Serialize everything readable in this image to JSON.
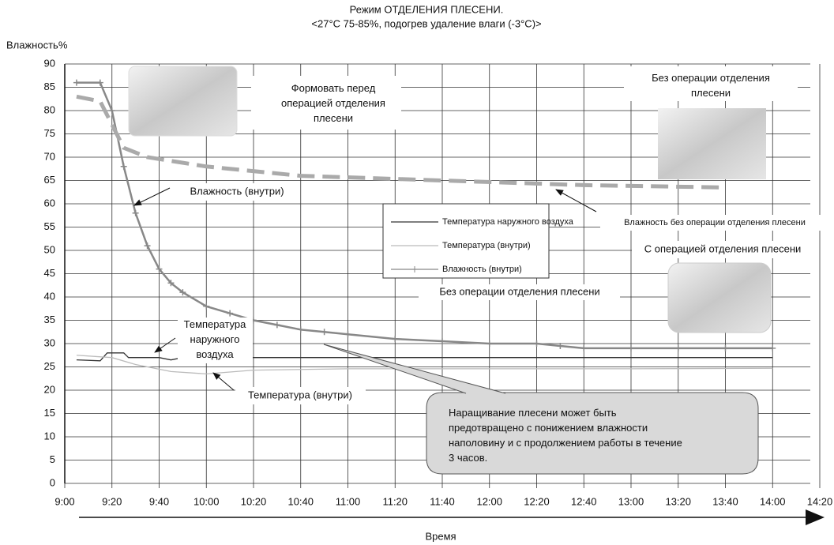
{
  "chart_data": {
    "type": "line",
    "title": "Режим ОТДЕЛЕНИЯ ПЛЕСЕНИ.",
    "subtitle": "<27°C 75-85%, подогрев удаление влаги (-3°C)>",
    "y_label": "Влажность%",
    "x_label": "Время",
    "xlim": [
      "9:00",
      "14:20"
    ],
    "xticks": [
      "9:00",
      "9:20",
      "9:40",
      "10:00",
      "10:20",
      "10:40",
      "11:00",
      "11:20",
      "11:40",
      "12:00",
      "12:20",
      "12:40",
      "13:00",
      "13:20",
      "13:40",
      "14:00",
      "14:20"
    ],
    "ylim": [
      0,
      90
    ],
    "yticks": [
      0,
      5,
      10,
      15,
      20,
      25,
      30,
      35,
      40,
      45,
      50,
      55,
      60,
      65,
      70,
      75,
      80,
      85,
      90
    ],
    "grid": true,
    "series": [
      {
        "name": "Температура наружного воздуха",
        "color": "#333333",
        "style": "solid",
        "x": [
          "9:05",
          "9:15",
          "9:18",
          "9:25",
          "9:27",
          "9:40",
          "9:45",
          "9:50",
          "10:00",
          "11:00",
          "12:00",
          "13:00",
          "14:00"
        ],
        "values": [
          26.5,
          26.3,
          28,
          28,
          27,
          27,
          26.5,
          27,
          27,
          27,
          27,
          27,
          27
        ]
      },
      {
        "name": "Температура (внутри)",
        "color": "#bbbbbb",
        "style": "solid",
        "x": [
          "9:05",
          "9:20",
          "9:30",
          "9:45",
          "10:00",
          "10:20",
          "11:00",
          "12:00",
          "13:00",
          "14:00"
        ],
        "values": [
          27.5,
          27,
          25.5,
          24,
          23.5,
          24.3,
          24.6,
          24.6,
          24.6,
          24.7
        ]
      },
      {
        "name": "Влажность (внутри)",
        "color": "#888888",
        "style": "plus",
        "x": [
          "9:05",
          "9:15",
          "9:20",
          "9:25",
          "9:30",
          "9:35",
          "9:40",
          "9:45",
          "9:50",
          "10:00",
          "10:10",
          "10:20",
          "10:30",
          "10:40",
          "10:50",
          "11:00",
          "11:20",
          "11:40",
          "12:00",
          "12:20",
          "12:30",
          "12:40",
          "13:00",
          "13:20",
          "13:40",
          "14:00"
        ],
        "values": [
          86,
          86,
          80,
          68,
          58,
          51,
          46,
          43,
          41,
          38,
          36.5,
          35,
          34,
          33,
          32.5,
          32,
          31,
          30.5,
          30,
          30,
          29.5,
          29,
          29,
          29,
          29,
          29
        ]
      },
      {
        "color": "#aaaaaa",
        "style": "dashed",
        "x": [
          "9:05",
          "9:15",
          "9:25",
          "9:35",
          "10:00",
          "10:40",
          "11:40",
          "12:40",
          "13:40"
        ],
        "values": [
          83,
          82,
          72,
          70,
          68,
          66,
          65,
          64,
          63.5
        ]
      }
    ],
    "annotations": [
      [
        "Формовать перед",
        "операцией отделения",
        "плесени"
      ],
      [
        "Без операции отделения",
        "плесени"
      ],
      [
        "Влажность (внутри)"
      ],
      [
        "Влажность без операции отделения плесени"
      ],
      [
        "С операцией отделения плесени"
      ],
      [
        "Без операции отделения плесени"
      ],
      [
        "Температура",
        "наружного",
        "воздуха"
      ],
      [
        "Температура (внутри)"
      ],
      [
        "Наращивание плесени может быть",
        "предотвращено с понижением влажности",
        "наполовину и с продолжением работы в течение",
        "3 часов."
      ]
    ]
  }
}
